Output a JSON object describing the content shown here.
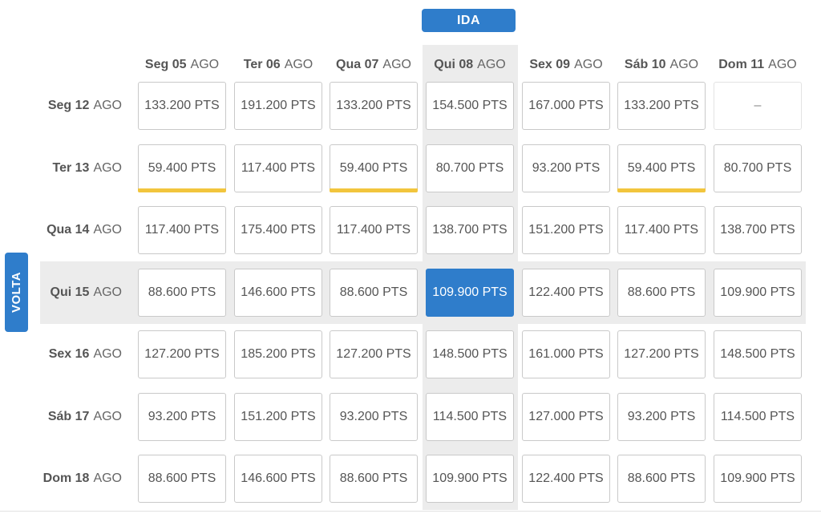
{
  "ida_label": "IDA",
  "volta_label": "VOLTA",
  "columns": [
    {
      "day": "Seg 05",
      "month": "AGO"
    },
    {
      "day": "Ter 06",
      "month": "AGO"
    },
    {
      "day": "Qua 07",
      "month": "AGO"
    },
    {
      "day": "Qui 08",
      "month": "AGO"
    },
    {
      "day": "Sex 09",
      "month": "AGO"
    },
    {
      "day": "Sáb 10",
      "month": "AGO"
    },
    {
      "day": "Dom 11",
      "month": "AGO"
    }
  ],
  "rows": [
    {
      "day": "Seg 12",
      "month": "AGO",
      "values": [
        "133.200 PTS",
        "191.200 PTS",
        "133.200 PTS",
        "154.500 PTS",
        "167.000 PTS",
        "133.200 PTS",
        "–"
      ]
    },
    {
      "day": "Ter 13",
      "month": "AGO",
      "values": [
        "59.400 PTS",
        "117.400 PTS",
        "59.400 PTS",
        "80.700 PTS",
        "93.200 PTS",
        "59.400 PTS",
        "80.700 PTS"
      ]
    },
    {
      "day": "Qua 14",
      "month": "AGO",
      "values": [
        "117.400 PTS",
        "175.400 PTS",
        "117.400 PTS",
        "138.700 PTS",
        "151.200 PTS",
        "117.400 PTS",
        "138.700 PTS"
      ]
    },
    {
      "day": "Qui 15",
      "month": "AGO",
      "values": [
        "88.600 PTS",
        "146.600 PTS",
        "88.600 PTS",
        "109.900 PTS",
        "122.400 PTS",
        "88.600 PTS",
        "109.900 PTS"
      ]
    },
    {
      "day": "Sex 16",
      "month": "AGO",
      "values": [
        "127.200 PTS",
        "185.200 PTS",
        "127.200 PTS",
        "148.500 PTS",
        "161.000 PTS",
        "127.200 PTS",
        "148.500 PTS"
      ]
    },
    {
      "day": "Sáb 17",
      "month": "AGO",
      "values": [
        "93.200 PTS",
        "151.200 PTS",
        "93.200 PTS",
        "114.500 PTS",
        "127.000 PTS",
        "93.200 PTS",
        "114.500 PTS"
      ]
    },
    {
      "day": "Dom 18",
      "month": "AGO",
      "values": [
        "88.600 PTS",
        "146.600 PTS",
        "88.600 PTS",
        "109.900 PTS",
        "122.400 PTS",
        "88.600 PTS",
        "109.900 PTS"
      ]
    }
  ],
  "selected": {
    "row": 3,
    "col": 3
  },
  "best_price_cells": [
    [
      1,
      0
    ],
    [
      1,
      2
    ],
    [
      1,
      5
    ]
  ],
  "empty_cells": [
    [
      0,
      6
    ]
  ],
  "colors": {
    "accent": "#2f7dcb",
    "best_price_underline": "#f2c53d",
    "highlight_band": "#ececec"
  }
}
